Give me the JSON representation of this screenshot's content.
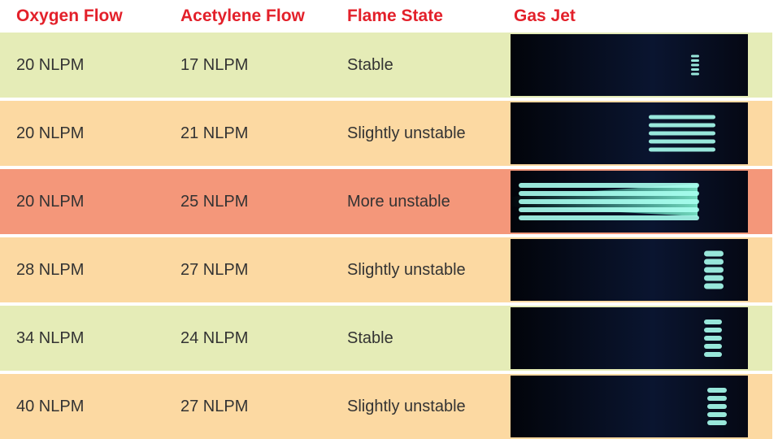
{
  "header": [
    "Oxygen Flow",
    "Acetylene Flow",
    "Flame State",
    "Gas Jet"
  ],
  "rows": [
    [
      "20 NLPM",
      "17 NLPM",
      "Stable"
    ],
    [
      "20 NLPM",
      "21 NLPM",
      "Slightly unstable"
    ],
    [
      "20 NLPM",
      "25 NLPM",
      "More unstable"
    ],
    [
      "28 NLPM",
      "27 NLPM",
      "Slightly unstable"
    ],
    [
      "34 NLPM",
      "24 NLPM",
      "Stable"
    ],
    [
      "40 NLPM",
      "27 NLPM",
      "Slightly unstable"
    ]
  ]
}
